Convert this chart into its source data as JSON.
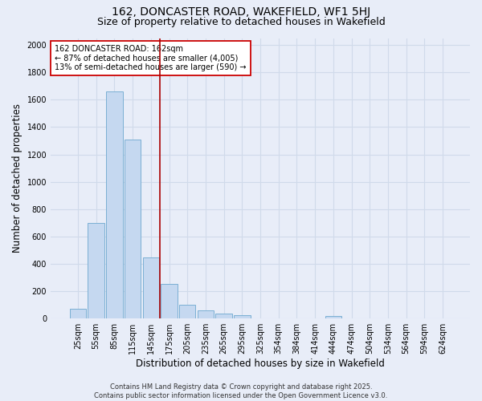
{
  "title": "162, DONCASTER ROAD, WAKEFIELD, WF1 5HJ",
  "subtitle": "Size of property relative to detached houses in Wakefield",
  "xlabel": "Distribution of detached houses by size in Wakefield",
  "ylabel": "Number of detached properties",
  "categories": [
    "25sqm",
    "55sqm",
    "85sqm",
    "115sqm",
    "145sqm",
    "175sqm",
    "205sqm",
    "235sqm",
    "265sqm",
    "295sqm",
    "325sqm",
    "354sqm",
    "384sqm",
    "414sqm",
    "444sqm",
    "474sqm",
    "504sqm",
    "534sqm",
    "564sqm",
    "594sqm",
    "624sqm"
  ],
  "values": [
    70,
    700,
    1660,
    1310,
    445,
    255,
    100,
    60,
    35,
    25,
    0,
    0,
    0,
    0,
    20,
    0,
    0,
    0,
    0,
    0,
    0
  ],
  "bar_color": "#c5d8f0",
  "bar_edge_color": "#7bafd4",
  "vline_index": 5,
  "vline_color": "#aa0000",
  "annotation_text": "162 DONCASTER ROAD: 162sqm\n← 87% of detached houses are smaller (4,005)\n13% of semi-detached houses are larger (590) →",
  "annotation_box_facecolor": "#ffffff",
  "annotation_box_edgecolor": "#cc0000",
  "ylim": [
    0,
    2050
  ],
  "yticks": [
    0,
    200,
    400,
    600,
    800,
    1000,
    1200,
    1400,
    1600,
    1800,
    2000
  ],
  "grid_color": "#d0daea",
  "background_color": "#e8edf8",
  "footer_text": "Contains HM Land Registry data © Crown copyright and database right 2025.\nContains public sector information licensed under the Open Government Licence v3.0.",
  "title_fontsize": 10,
  "subtitle_fontsize": 9,
  "xlabel_fontsize": 8.5,
  "ylabel_fontsize": 8.5,
  "tick_fontsize": 7,
  "annotation_fontsize": 7,
  "footer_fontsize": 6
}
